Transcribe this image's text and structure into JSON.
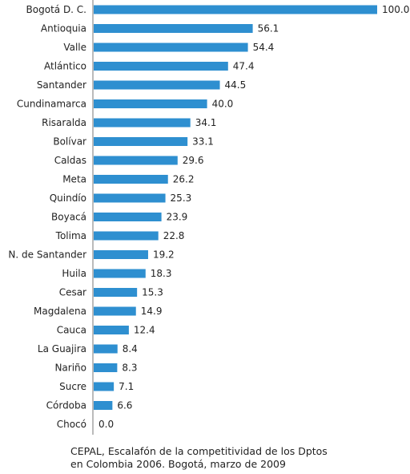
{
  "chart_data": {
    "type": "bar",
    "orientation": "horizontal",
    "categories": [
      "Bogotá D. C.",
      "Antioquia",
      "Valle",
      "Atlántico",
      "Santander",
      "Cundinamarca",
      "Risaralda",
      "Bolívar",
      "Caldas",
      "Meta",
      "Quindío",
      "Boyacá",
      "Tolima",
      "N. de Santander",
      "Huila",
      "Cesar",
      "Magdalena",
      "Cauca",
      "La Guajira",
      "Nariño",
      "Sucre",
      "Córdoba",
      "Chocó"
    ],
    "values": [
      100.0,
      56.1,
      54.4,
      47.4,
      44.5,
      40.0,
      34.1,
      33.1,
      29.6,
      26.2,
      25.3,
      23.9,
      22.8,
      19.2,
      18.3,
      15.3,
      14.9,
      12.4,
      8.4,
      8.3,
      7.1,
      6.6,
      0.0
    ],
    "value_labels": [
      "100.0",
      "56.1",
      "54.4",
      "47.4",
      "44.5",
      "40.0",
      "34.1",
      "33.1",
      "29.6",
      "26.2",
      "25.3",
      "23.9",
      "22.8",
      "19.2",
      "18.3",
      "15.3",
      "14.9",
      "12.4",
      "8.4",
      "8.3",
      "7.1",
      "6.6",
      "0.0"
    ],
    "xlim": [
      0,
      100
    ],
    "bar_color": "#2E8FD0",
    "axis_color": "#777777",
    "grid": false,
    "legend": "none",
    "title": "",
    "xlabel": "",
    "ylabel": ""
  },
  "caption": {
    "line1": "CEPAL, Escalafón de la competitividad de los Dptos",
    "line2": "en Colombia 2006. Bogotá, marzo de 2009"
  }
}
